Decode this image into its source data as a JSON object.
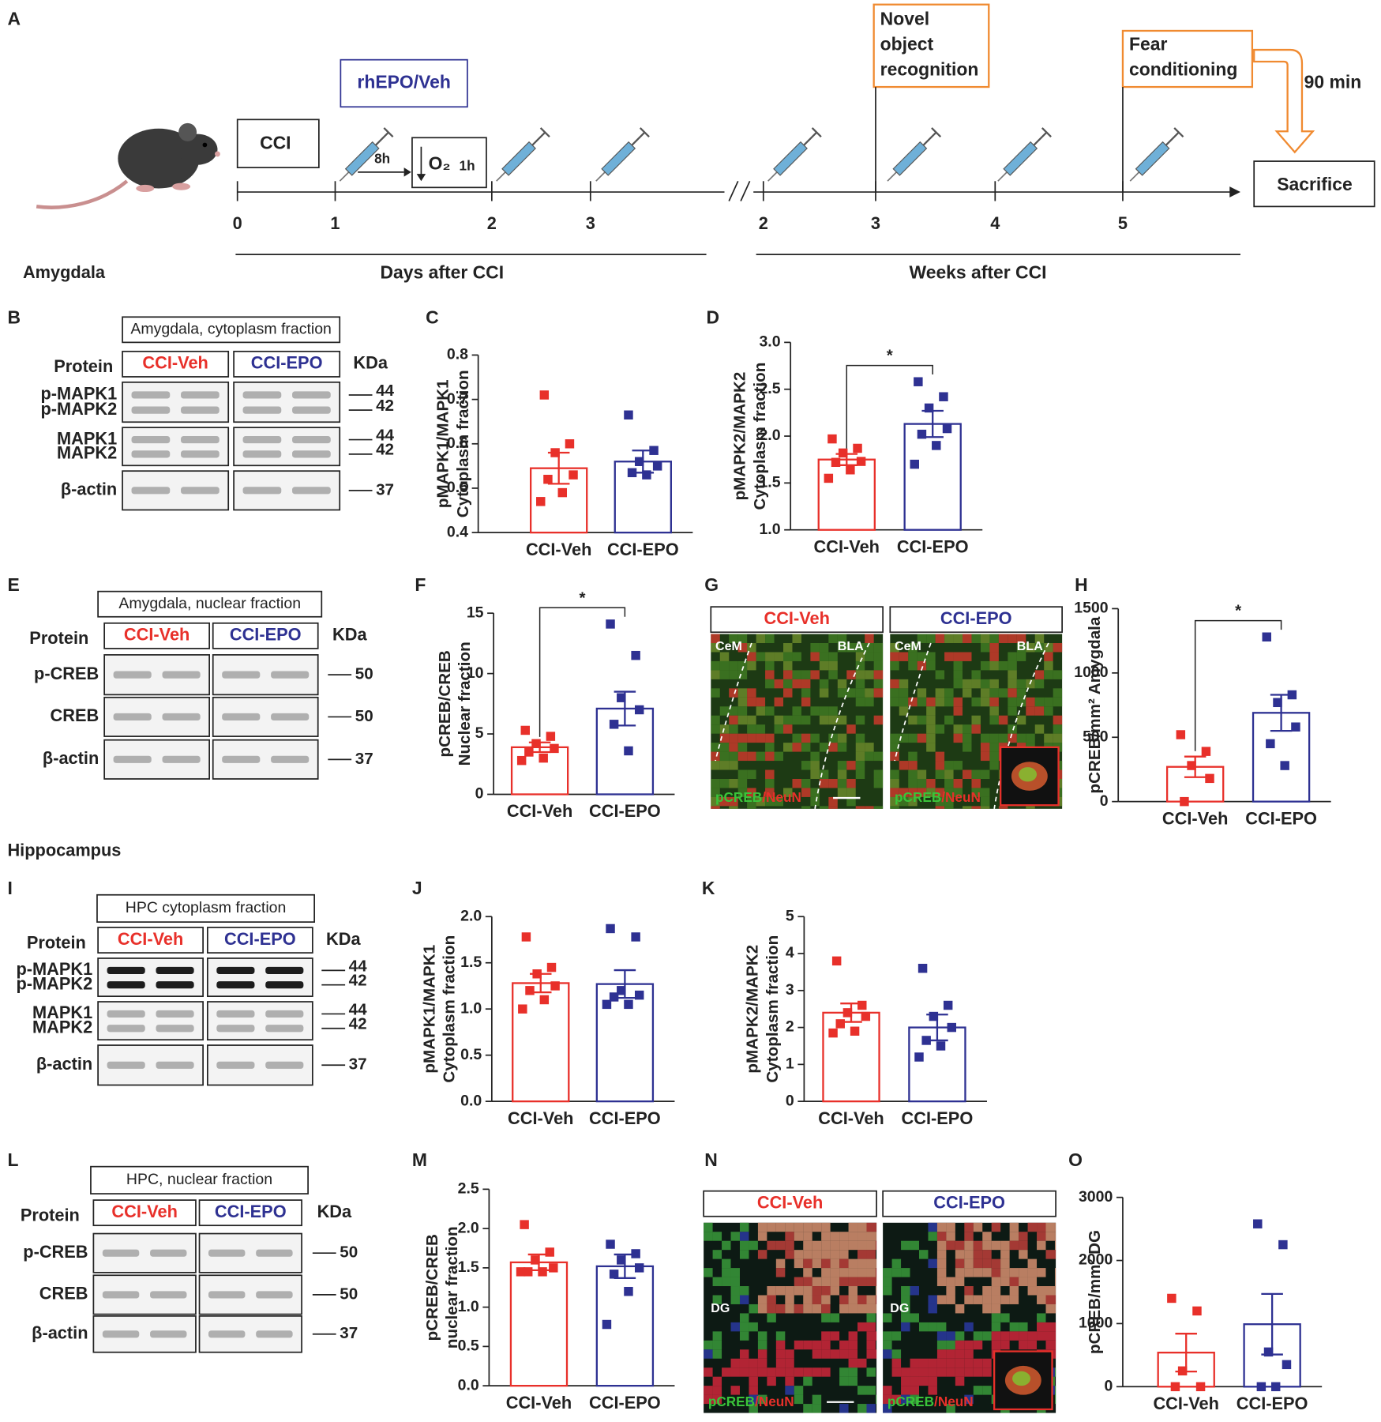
{
  "figure": {
    "timeline": {
      "letter": "A",
      "injury": "CCI",
      "treatment": "rhEPO/Veh",
      "delay": "8h",
      "oxygen": "O₂",
      "oxygen_time": "1h",
      "test1": [
        "Novel",
        "object",
        "recognition"
      ],
      "test2": [
        "Fear",
        "conditioning"
      ],
      "wait": "90 min",
      "end": "Sacrifice",
      "days": [
        0,
        1,
        2,
        3
      ],
      "weeks": [
        2,
        3,
        4,
        5
      ],
      "days_label": "Days after CCI",
      "weeks_label": "Weeks after CCI"
    },
    "sections": [
      "Amygdala",
      "Hippocampus"
    ],
    "blots": [
      {
        "letter": "B",
        "title": "Amygdala, cytoplasm fraction",
        "protein": "Protein",
        "groups": [
          "CCI-Veh",
          "CCI-EPO"
        ],
        "kda_header": "KDa",
        "rows": [
          {
            "labels": [
              "p-MAPK1",
              "p-MAPK2"
            ],
            "kda": [
              44,
              42
            ]
          },
          {
            "labels": [
              "MAPK1",
              "MAPK2"
            ],
            "kda": [
              44,
              42
            ]
          },
          {
            "labels": [
              "β-actin"
            ],
            "kda": [
              37
            ]
          }
        ]
      },
      {
        "letter": "E",
        "title": "Amygdala, nuclear fraction",
        "protein": "Protein",
        "groups": [
          "CCI-Veh",
          "CCI-EPO"
        ],
        "kda_header": "KDa",
        "rows": [
          {
            "labels": [
              "p-CREB"
            ],
            "kda": [
              50
            ]
          },
          {
            "labels": [
              "CREB"
            ],
            "kda": [
              50
            ]
          },
          {
            "labels": [
              "β-actin"
            ],
            "kda": [
              37
            ]
          }
        ]
      },
      {
        "letter": "I",
        "title": "HPC cytoplasm fraction",
        "protein": "Protein",
        "groups": [
          "CCI-Veh",
          "CCI-EPO"
        ],
        "kda_header": "KDa",
        "rows": [
          {
            "labels": [
              "p-MAPK1",
              "p-MAPK2"
            ],
            "kda": [
              44,
              42
            ]
          },
          {
            "labels": [
              "MAPK1",
              "MAPK2"
            ],
            "kda": [
              44,
              42
            ]
          },
          {
            "labels": [
              "β-actin"
            ],
            "kda": [
              37
            ]
          }
        ]
      },
      {
        "letter": "L",
        "title": "HPC, nuclear fraction",
        "protein": "Protein",
        "groups": [
          "CCI-Veh",
          "CCI-EPO"
        ],
        "kda_header": "KDa",
        "rows": [
          {
            "labels": [
              "p-CREB"
            ],
            "kda": [
              50
            ]
          },
          {
            "labels": [
              "CREB"
            ],
            "kda": [
              50
            ]
          },
          {
            "labels": [
              "β-actin"
            ],
            "kda": [
              37
            ]
          }
        ]
      }
    ],
    "images": [
      {
        "letter": "G",
        "groups": [
          "CCI-Veh",
          "CCI-EPO"
        ],
        "regions": [
          "CeM",
          "BLA"
        ],
        "stain": [
          "pCREB",
          "/NeuN"
        ]
      },
      {
        "letter": "N",
        "groups": [
          "CCI-Veh",
          "CCI-EPO"
        ],
        "regions": [
          "DG"
        ],
        "stain": [
          "pCREB",
          "/NeuN"
        ]
      }
    ]
  },
  "chart_data": [
    {
      "type": "bar",
      "letter": "C",
      "ylabel": [
        "pMAPK1/MAPK1",
        "Cytoplasm fraction"
      ],
      "categories": [
        "CCI-Veh",
        "CCI-EPO"
      ],
      "colors": [
        "#e8302a",
        "#2e3192"
      ],
      "values": [
        0.545,
        0.56
      ],
      "errors": [
        0.035,
        0.025
      ],
      "points": [
        [
          0.71,
          0.6,
          0.58,
          0.53,
          0.52,
          0.49,
          0.47
        ],
        [
          0.665,
          0.585,
          0.56,
          0.55,
          0.535,
          0.53
        ]
      ],
      "ylim": [
        0.4,
        0.8
      ],
      "yticks": [
        0.4,
        0.5,
        0.6,
        0.7,
        0.8
      ]
    },
    {
      "type": "bar",
      "letter": "D",
      "ylabel": [
        "pMAPK2/MAPK2",
        "Cytoplasm fraction"
      ],
      "categories": [
        "CCI-Veh",
        "CCI-EPO"
      ],
      "colors": [
        "#e8302a",
        "#2e3192"
      ],
      "values": [
        1.75,
        2.13
      ],
      "errors": [
        0.06,
        0.14
      ],
      "points": [
        [
          1.97,
          1.87,
          1.82,
          1.73,
          1.72,
          1.64,
          1.55
        ],
        [
          2.58,
          2.42,
          2.3,
          2.08,
          2.02,
          1.9,
          1.7
        ]
      ],
      "ylim": [
        1,
        3
      ],
      "yticks": [
        {
          "value": 1,
          "label": "1.0"
        },
        1.5,
        {
          "value": 2,
          "label": "2.0"
        },
        2.5,
        {
          "value": 3,
          "label": "3.0"
        }
      ],
      "significance": "*"
    },
    {
      "type": "bar",
      "letter": "F",
      "ylabel": [
        "pCREB/CREB",
        "Nuclear fraction"
      ],
      "categories": [
        "CCI-Veh",
        "CCI-EPO"
      ],
      "colors": [
        "#e8302a",
        "#2e3192"
      ],
      "values": [
        3.9,
        7.1
      ],
      "errors": [
        0.4,
        1.4
      ],
      "points": [
        [
          5.3,
          4.8,
          4.2,
          3.8,
          3.5,
          3.0,
          2.8
        ],
        [
          14.1,
          11.5,
          8.0,
          7.0,
          5.8,
          3.6
        ]
      ],
      "ylim": [
        0,
        15
      ],
      "yticks": [
        0,
        5,
        10,
        15
      ],
      "significance": "*"
    },
    {
      "type": "bar",
      "letter": "H",
      "ylabel": [
        "pCREB/mm² Amygdala"
      ],
      "categories": [
        "CCI-Veh",
        "CCI-EPO"
      ],
      "colors": [
        "#e8302a",
        "#2e3192"
      ],
      "values": [
        270,
        690
      ],
      "errors": [
        80,
        140
      ],
      "points": [
        [
          520,
          390,
          280,
          180,
          0
        ],
        [
          1280,
          830,
          770,
          580,
          450,
          280
        ]
      ],
      "ylim": [
        0,
        1500
      ],
      "yticks": [
        0,
        500,
        1000,
        1500
      ],
      "significance": "*"
    },
    {
      "type": "bar",
      "letter": "J",
      "ylabel": [
        "pMAPK1/MAPK1",
        "Cytoplasm fraction"
      ],
      "categories": [
        "CCI-Veh",
        "CCI-EPO"
      ],
      "colors": [
        "#e8302a",
        "#2e3192"
      ],
      "values": [
        1.28,
        1.27
      ],
      "errors": [
        0.1,
        0.15
      ],
      "points": [
        [
          1.78,
          1.45,
          1.38,
          1.25,
          1.2,
          1.1,
          1.0
        ],
        [
          1.87,
          1.78,
          1.2,
          1.15,
          1.13,
          1.05,
          1.05
        ]
      ],
      "ylim": [
        0,
        2
      ],
      "yticks": [
        {
          "value": 0,
          "label": "0.0"
        },
        0.5,
        {
          "value": 1,
          "label": "1.0"
        },
        1.5,
        {
          "value": 2,
          "label": "2.0"
        }
      ]
    },
    {
      "type": "bar",
      "letter": "K",
      "ylabel": [
        "pMAPK2/MAPK2",
        "Cytoplasm fraction"
      ],
      "categories": [
        "CCI-Veh",
        "CCI-EPO"
      ],
      "colors": [
        "#e8302a",
        "#2e3192"
      ],
      "values": [
        2.4,
        2.0
      ],
      "errors": [
        0.25,
        0.35
      ],
      "points": [
        [
          3.8,
          2.6,
          2.4,
          2.3,
          2.1,
          1.9,
          1.85
        ],
        [
          3.6,
          2.6,
          2.3,
          2.0,
          1.65,
          1.5,
          1.2
        ]
      ],
      "ylim": [
        0,
        5
      ],
      "yticks": [
        0,
        1,
        2,
        3,
        4,
        5
      ]
    },
    {
      "type": "bar",
      "letter": "M",
      "ylabel": [
        "pCREB/CREB",
        "nuclear fraction"
      ],
      "categories": [
        "CCI-Veh",
        "CCI-EPO"
      ],
      "colors": [
        "#e8302a",
        "#2e3192"
      ],
      "values": [
        1.57,
        1.52
      ],
      "errors": [
        0.1,
        0.15
      ],
      "points": [
        [
          2.05,
          1.7,
          1.6,
          1.5,
          1.45,
          1.45,
          1.45
        ],
        [
          1.8,
          1.68,
          1.6,
          1.5,
          1.42,
          1.2,
          0.78
        ]
      ],
      "ylim": [
        0,
        2.5
      ],
      "yticks": [
        {
          "value": 0,
          "label": "0.0"
        },
        0.5,
        {
          "value": 1,
          "label": "1.0"
        },
        1.5,
        {
          "value": 2,
          "label": "2.0"
        },
        2.5
      ]
    },
    {
      "type": "bar",
      "letter": "O",
      "ylabel": [
        "pCREB/mm² DG"
      ],
      "categories": [
        "CCI-Veh",
        "CCI-EPO"
      ],
      "colors": [
        "#e8302a",
        "#2e3192"
      ],
      "values": [
        540,
        990
      ],
      "errors": [
        300,
        480
      ],
      "points": [
        [
          1400,
          1200,
          250,
          0,
          0
        ],
        [
          2580,
          2250,
          550,
          350,
          0,
          0
        ]
      ],
      "ylim": [
        0,
        3000
      ],
      "yticks": [
        0,
        1000,
        2000,
        3000
      ]
    }
  ]
}
